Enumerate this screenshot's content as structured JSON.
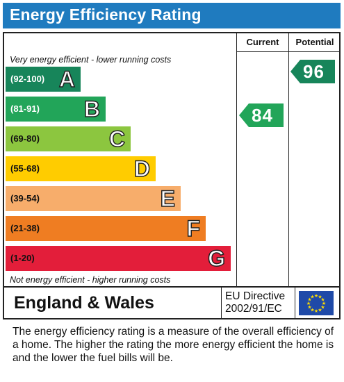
{
  "title": "Energy Efficiency Rating",
  "columns": {
    "current": "Current",
    "potential": "Potential"
  },
  "top_note": "Very energy efficient - lower running costs",
  "bottom_note": "Not energy efficient - higher running costs",
  "bands": [
    {
      "range": "(92-100)",
      "letter": "A",
      "color": "#17855a",
      "text_color": "#ffffff"
    },
    {
      "range": "(81-91)",
      "letter": "B",
      "color": "#22a559",
      "text_color": "#ffffff"
    },
    {
      "range": "(69-80)",
      "letter": "C",
      "color": "#8cc63f",
      "text_color": "#111111"
    },
    {
      "range": "(55-68)",
      "letter": "D",
      "color": "#ffcc00",
      "text_color": "#111111"
    },
    {
      "range": "(39-54)",
      "letter": "E",
      "color": "#f7ad6b",
      "text_color": "#111111"
    },
    {
      "range": "(21-38)",
      "letter": "F",
      "color": "#ef7d22",
      "text_color": "#111111"
    },
    {
      "range": "(1-20)",
      "letter": "G",
      "color": "#e31e3a",
      "text_color": "#111111"
    }
  ],
  "current_rating": {
    "value": "84",
    "band": "B",
    "color": "#22a559"
  },
  "potential_rating": {
    "value": "96",
    "band": "A",
    "color": "#17855a"
  },
  "region": "England & Wales",
  "directive": {
    "line1": "EU Directive",
    "line2": "2002/91/EC"
  },
  "description": "The energy efficiency rating is a measure of the overall efficiency of a home.  The higher the rating the more energy efficient the home is and the lower the fuel bills will be."
}
